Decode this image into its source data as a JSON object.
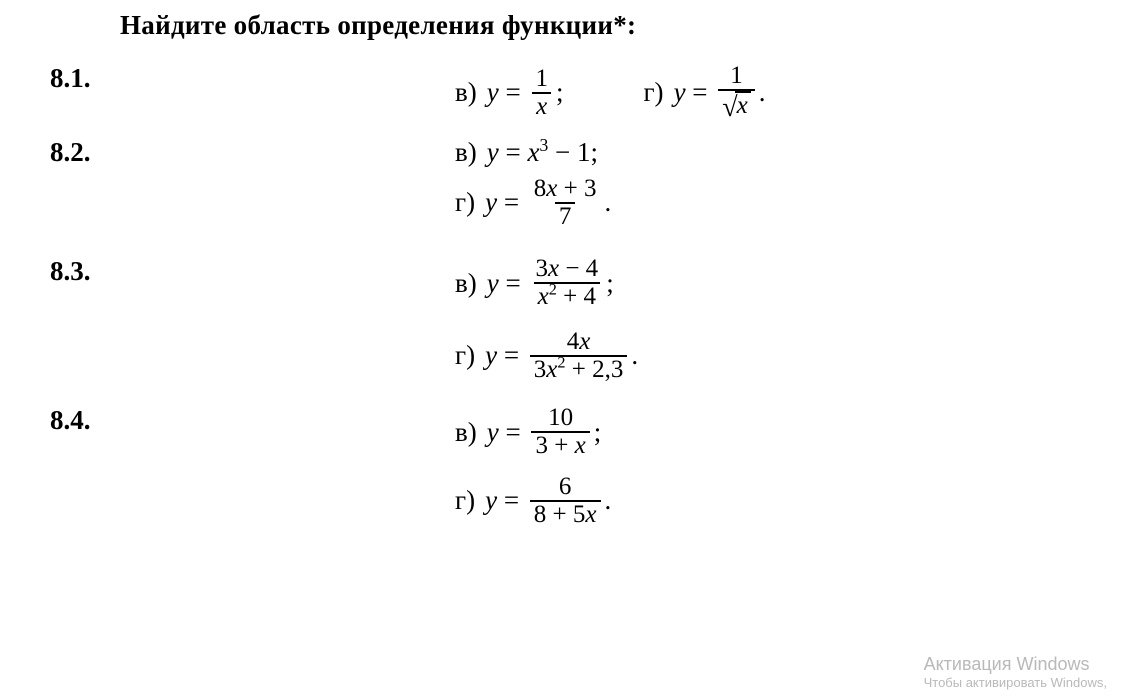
{
  "heading": "Найдите область определения функции*:",
  "problems": [
    {
      "num": "8.1.",
      "items": [
        {
          "letter": "в)",
          "lhs": "y",
          "frac": {
            "nu_html": "<span class='num'>1</span>",
            "de_html": "x"
          },
          "punct": ";"
        },
        {
          "letter": "г)",
          "lhs": "y",
          "frac": {
            "nu_html": "<span class='num'>1</span>",
            "de_sqrt": "x"
          },
          "punct": "."
        }
      ],
      "layout": "inline"
    },
    {
      "num": "8.2.",
      "items": [
        {
          "letter": "в)",
          "lhs": "y",
          "plain_html": "x<sup class='num'>3</sup> <span class='op'>− 1</span>",
          "punct": ";"
        },
        {
          "letter": "г)",
          "lhs": "y",
          "frac": {
            "nu_html": "<span class='num'>8</span>x <span class='op'>+ 3</span>",
            "de_html": "<span class='num'>7</span>"
          },
          "punct": "."
        }
      ],
      "layout": "stack"
    },
    {
      "num": "8.3.",
      "items": [
        {
          "letter": "в)",
          "lhs": "y",
          "frac": {
            "nu_html": "<span class='num'>3</span>x <span class='op'>− 4</span>",
            "de_html": "x<sup class='num'>2</sup> <span class='op'>+ 4</span>"
          },
          "punct": ";"
        },
        {
          "letter": "г)",
          "lhs": "y",
          "frac": {
            "nu_html": "<span class='num'>4</span>x",
            "de_html": "<span class='num'>3</span>x<sup class='num'>2</sup> <span class='op'>+ 2,3</span>"
          },
          "punct": "."
        }
      ],
      "layout": "stack"
    },
    {
      "num": "8.4.",
      "items": [
        {
          "letter": "в)",
          "lhs": "y",
          "frac": {
            "nu_html": "<span class='num'>10</span>",
            "de_html": "<span class='num'>3 + </span>x"
          },
          "punct": ";"
        },
        {
          "letter": "г)",
          "lhs": "y",
          "frac": {
            "nu_html": "<span class='num'>6</span>",
            "de_html": "<span class='num'>8 + 5</span>x"
          },
          "punct": "."
        }
      ],
      "layout": "stack"
    }
  ],
  "watermark": {
    "line1": "Активация Windows",
    "line2": "Чтобы активировать Windows,"
  },
  "style": {
    "background": "#ffffff",
    "text_color": "#000000",
    "watermark_color": "#b9b9b9",
    "heading_fontsize": 27,
    "body_fontsize": 27,
    "frac_fontsize": 25
  }
}
